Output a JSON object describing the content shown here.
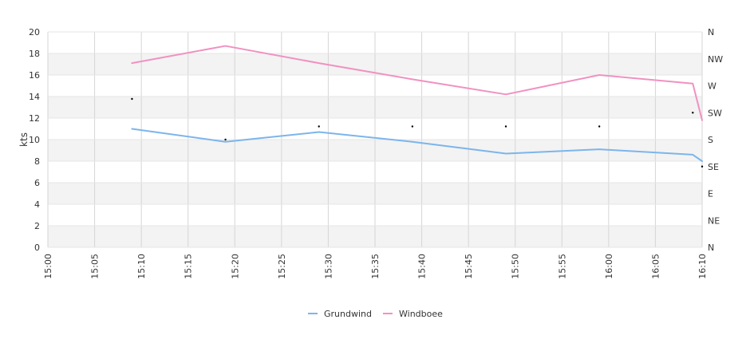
{
  "chart_data": {
    "type": "line",
    "title": "",
    "xlabel": "",
    "ylabel": "kts",
    "y2label": "",
    "x_ticks": [
      "15:00",
      "15:05",
      "15:10",
      "15:15",
      "15:20",
      "15:25",
      "15:30",
      "15:35",
      "15:40",
      "15:45",
      "15:50",
      "15:55",
      "16:00",
      "16:05",
      "16:10"
    ],
    "y_ticks": [
      0,
      2,
      4,
      6,
      8,
      10,
      12,
      14,
      16,
      18,
      20
    ],
    "y2_ticks": [
      "N",
      "NE",
      "E",
      "SE",
      "S",
      "SW",
      "W",
      "NW",
      "N"
    ],
    "xlim": [
      0,
      70
    ],
    "ylim": [
      0,
      20
    ],
    "y2lim": [
      0,
      360
    ],
    "grid": true,
    "legend_position": "bottom",
    "series": [
      {
        "name": "Grundwind",
        "color": "#7cb5ec",
        "axis": "left",
        "x": [
          "15:09",
          "15:19",
          "15:29",
          "15:39",
          "15:49",
          "15:59",
          "16:09",
          "16:10"
        ],
        "values": [
          11.0,
          9.8,
          10.7,
          9.8,
          8.7,
          9.1,
          8.6,
          8.0
        ]
      },
      {
        "name": "Windboee",
        "color": "#f191c1",
        "axis": "left",
        "x": [
          "15:09",
          "15:19",
          "15:29",
          "15:39",
          "15:49",
          "15:59",
          "16:09",
          "16:10"
        ],
        "values": [
          17.1,
          18.7,
          17.1,
          15.6,
          14.2,
          16.0,
          15.2,
          11.8
        ]
      },
      {
        "name": "",
        "color": "#000000",
        "axis": "right",
        "marker": "dot",
        "x": [
          "15:09",
          "15:19",
          "15:29",
          "15:39",
          "15:49",
          "15:59",
          "16:09",
          "16:10"
        ],
        "values": [
          248,
          180,
          202,
          202,
          202,
          202,
          225,
          135
        ]
      }
    ]
  }
}
